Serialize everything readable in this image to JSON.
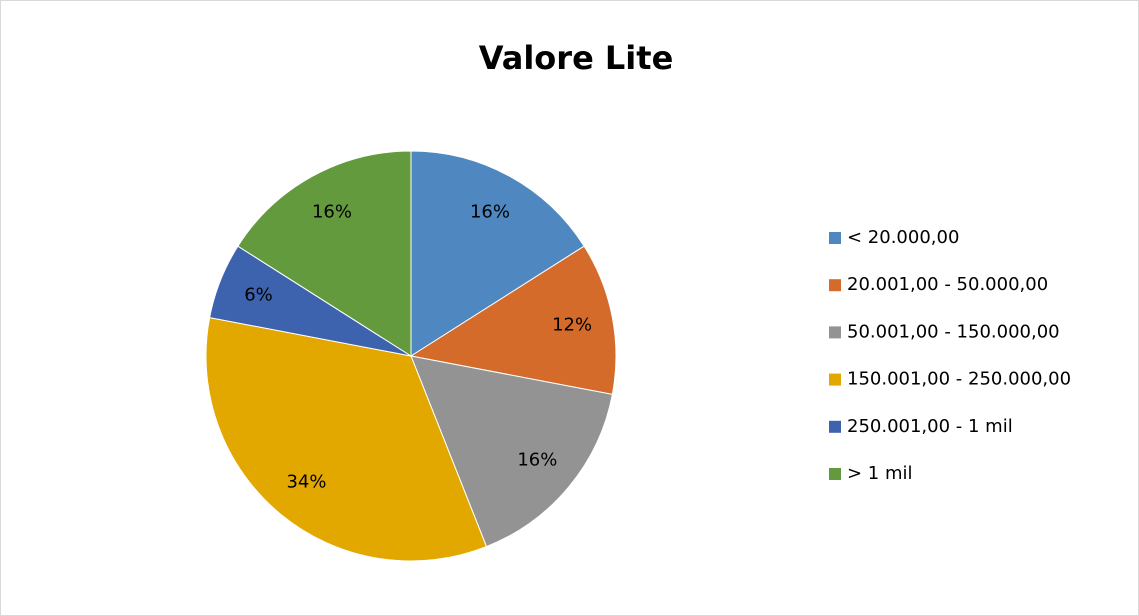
{
  "chart_data": {
    "type": "pie",
    "title": "Valore Lite",
    "categories": [
      "< 20.000,00",
      "20.001,00 - 50.000,00",
      "50.001,00 - 150.000,00",
      "150.001,00 - 250.000,00",
      "250.001,00 - 1 mil",
      "> 1 mil"
    ],
    "values": [
      16,
      12,
      16,
      34,
      6,
      16
    ],
    "value_labels": [
      "16%",
      "12%",
      "16%",
      "34%",
      "6%",
      "16%"
    ],
    "colors": [
      "#4f87c0",
      "#d46b2a",
      "#939393",
      "#e2a800",
      "#3d63ae",
      "#629a3d"
    ],
    "legend": "right"
  }
}
